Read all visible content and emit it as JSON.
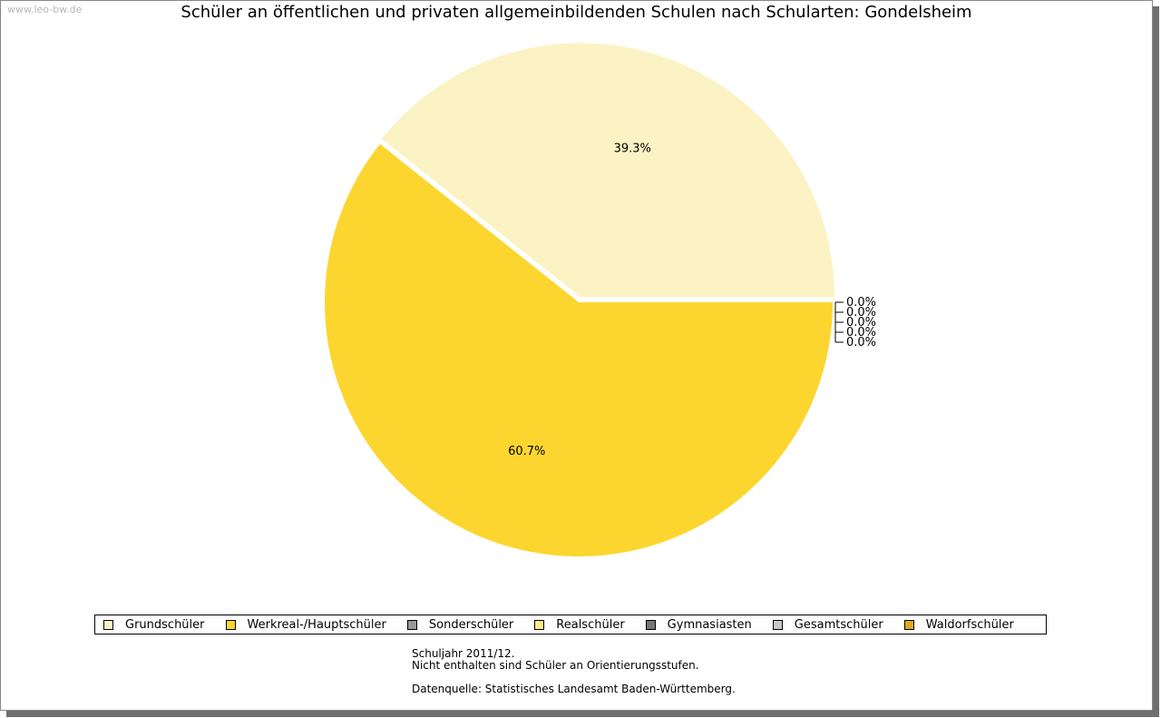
{
  "watermark": "www.leo-bw.de",
  "chart_data": {
    "type": "pie",
    "title": "Schüler an öffentlichen und privaten allgemeinbildenden Schulen nach Schularten: Gondelsheim",
    "slices": [
      {
        "name": "Grundschüler",
        "value": 39.3,
        "label": "39.3%",
        "color": "#fcf3c4"
      },
      {
        "name": "Werkreal-/Hauptschüler",
        "value": 60.7,
        "label": "60.7%",
        "color": "#fcd62f"
      },
      {
        "name": "Sonderschüler",
        "value": 0.0,
        "label": "0.0%",
        "color": "#999999"
      },
      {
        "name": "Realschüler",
        "value": 0.0,
        "label": "0.0%",
        "color": "#fde98b"
      },
      {
        "name": "Gymnasiasten",
        "value": 0.0,
        "label": "0.0%",
        "color": "#777777"
      },
      {
        "name": "Gesamtschüler",
        "value": 0.0,
        "label": "0.0%",
        "color": "#c8c8c8"
      },
      {
        "name": "Waldorfschüler",
        "value": 0.0,
        "label": "0.0%",
        "color": "#e1a91c"
      }
    ],
    "legend_position": "bottom"
  },
  "notes": {
    "line1": "Schuljahr 2011/12.",
    "line2": "Nicht enthalten sind Schüler an Orientierungsstufen.",
    "line3": "Datenquelle: Statistisches Landesamt Baden-Württemberg."
  }
}
